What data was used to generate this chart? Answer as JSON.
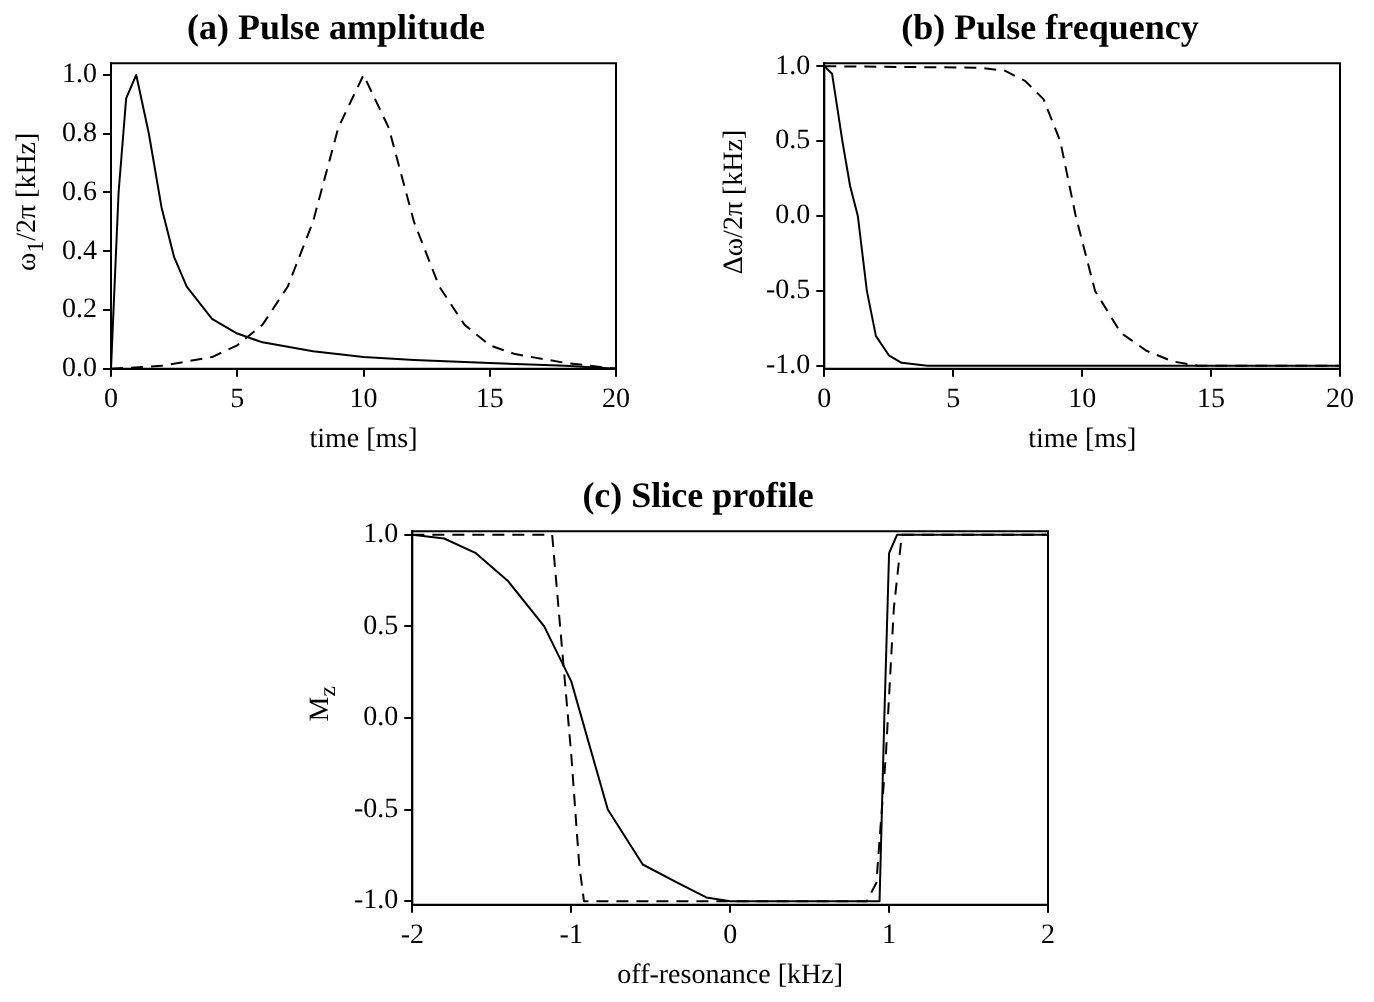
{
  "chart_data": [
    {
      "type": "line",
      "title": "(a) Pulse amplitude",
      "xlabel": "time [ms]",
      "ylabel": "ω$_{1}$/2π [kHz]",
      "xlim": [
        0,
        20
      ],
      "xticks": [
        0,
        5,
        10,
        15,
        20
      ],
      "ylim": [
        0,
        1.04
      ],
      "yticks": [
        {
          "value": 0,
          "label": "0.0"
        },
        {
          "value": 0.2,
          "label": "0.2"
        },
        {
          "value": 0.4,
          "label": "0.4"
        },
        {
          "value": 0.6,
          "label": "0.6"
        },
        {
          "value": 0.8,
          "label": "0.8"
        },
        {
          "value": 1,
          "label": "1.0"
        }
      ],
      "grid": false,
      "legend": false,
      "marker": "none",
      "series": [
        {
          "color": "#000000",
          "line_style": "solid",
          "x": [
            0,
            0.3,
            0.6,
            1,
            1.5,
            2,
            2.5,
            3,
            4,
            5,
            6,
            8,
            10,
            12,
            15,
            18,
            20
          ],
          "values": [
            0,
            0.6,
            0.92,
            1.0,
            0.8,
            0.55,
            0.38,
            0.28,
            0.17,
            0.12,
            0.09,
            0.06,
            0.04,
            0.03,
            0.02,
            0.01,
            0
          ]
        },
        {
          "color": "#000000",
          "line_style": "dashed",
          "x": [
            0,
            2,
            4,
            5,
            6,
            7,
            8,
            9,
            10,
            11,
            12,
            13,
            14,
            15,
            16,
            18,
            20
          ],
          "values": [
            0,
            0.01,
            0.04,
            0.08,
            0.15,
            0.28,
            0.5,
            0.82,
            1.0,
            0.82,
            0.5,
            0.28,
            0.15,
            0.08,
            0.05,
            0.02,
            0
          ]
        }
      ]
    },
    {
      "type": "line",
      "title": "(b) Pulse frequency",
      "xlabel": "time [ms]",
      "ylabel": "Δω/2π [kHz]",
      "xlim": [
        0,
        20
      ],
      "xticks": [
        0,
        5,
        10,
        15,
        20
      ],
      "ylim": [
        -1.02,
        1.02
      ],
      "yticks": [
        {
          "value": -1,
          "label": "-1.0"
        },
        {
          "value": -0.5,
          "label": "-0.5"
        },
        {
          "value": 0,
          "label": "0.0"
        },
        {
          "value": 0.5,
          "label": "0.5"
        },
        {
          "value": 1,
          "label": "1.0"
        }
      ],
      "grid": false,
      "legend": false,
      "marker": "none",
      "series": [
        {
          "color": "#000000",
          "line_style": "solid",
          "x": [
            0,
            0.3,
            0.7,
            1,
            1.3,
            1.65,
            2,
            2.5,
            3,
            4,
            20
          ],
          "values": [
            1.0,
            0.95,
            0.5,
            0.2,
            0,
            -0.5,
            -0.8,
            -0.93,
            -0.98,
            -1.0,
            -1.0
          ]
        },
        {
          "color": "#000000",
          "line_style": "dashed",
          "x": [
            0,
            6,
            7,
            7.8,
            8.5,
            9.15,
            9.75,
            10.5,
            11.5,
            12.5,
            13.5,
            14.5,
            20
          ],
          "values": [
            1.0,
            0.99,
            0.97,
            0.9,
            0.78,
            0.5,
            0,
            -0.5,
            -0.78,
            -0.9,
            -0.97,
            -1.0,
            -1.0
          ]
        }
      ]
    },
    {
      "type": "line",
      "title": "(c) Slice profile",
      "xlabel": "off-resonance [kHz]",
      "ylabel": "M$_{z}$",
      "xlim": [
        -2,
        2
      ],
      "xticks": [
        -2,
        -1,
        0,
        1,
        2
      ],
      "ylim": [
        -1.02,
        1.02
      ],
      "yticks": [
        {
          "value": -1,
          "label": "-1.0"
        },
        {
          "value": -0.5,
          "label": "-0.5"
        },
        {
          "value": 0,
          "label": "0.0"
        },
        {
          "value": 0.5,
          "label": "0.5"
        },
        {
          "value": 1,
          "label": "1.0"
        }
      ],
      "grid": false,
      "legend": false,
      "marker": "none",
      "series": [
        {
          "color": "#000000",
          "line_style": "solid",
          "x": [
            -2,
            -1.8,
            -1.6,
            -1.4,
            -1.17,
            -1,
            -0.77,
            -0.55,
            -0.33,
            -0.15,
            0,
            0.9,
            0.94,
            0.97,
            1.0,
            1.05,
            2
          ],
          "values": [
            1.0,
            0.98,
            0.9,
            0.75,
            0.5,
            0.2,
            -0.5,
            -0.8,
            -0.9,
            -0.98,
            -1.0,
            -1.0,
            -1.0,
            0,
            0.9,
            1.0,
            1.0
          ]
        },
        {
          "color": "#000000",
          "line_style": "dashed",
          "x": [
            -2,
            -1.12,
            -1.08,
            -1.0,
            -0.95,
            -0.92,
            0.86,
            0.92,
            0.98,
            1.03,
            1.08,
            2
          ],
          "values": [
            1.0,
            1.0,
            0.6,
            -0.2,
            -0.8,
            -1.0,
            -1.0,
            -0.9,
            -0.2,
            0.6,
            1.0,
            1.0
          ]
        }
      ]
    }
  ]
}
